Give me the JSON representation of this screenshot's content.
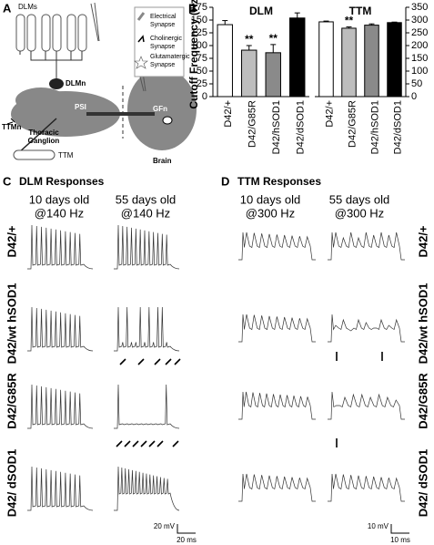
{
  "panel_a": {
    "label": "A",
    "dlms": "DLMs",
    "dlmn": "DLMn",
    "psi": "PSI",
    "ttmn": "TTMn",
    "ganglion": [
      "Thoracic",
      "Ganglion"
    ],
    "ttm": "TTM",
    "gfn": "GFn",
    "brain": "Brain",
    "legend": [
      [
        "Electrical",
        "Synapse"
      ],
      [
        "Cholinergic",
        "Synapse"
      ],
      [
        "Glutamatergic",
        "Synapse"
      ]
    ]
  },
  "panel_b": {
    "label": "B"
  },
  "chart_data": [
    {
      "type": "bar",
      "title": "DLM",
      "ylabel": "Cutoff Frequency (Hz)",
      "categories": [
        "D42/+",
        "D42/G85R",
        "D42/hSOD1",
        "D42/dSOD1"
      ],
      "values": [
        141,
        91,
        86,
        154
      ],
      "errors": [
        8,
        9,
        16,
        10
      ],
      "colors": [
        "#ffffff",
        "#bdbdbd",
        "#8a8a8a",
        "#000000"
      ],
      "annotations": [
        null,
        "**",
        "**",
        null
      ],
      "ylim": [
        0,
        175
      ],
      "yticks": [
        0,
        25,
        50,
        75,
        100,
        125,
        150,
        175
      ],
      "y_axis": "left"
    },
    {
      "type": "bar",
      "title": "TTM",
      "categories": [
        "D42/+",
        "D42/G85R",
        "D42/hSOD1",
        "D42/dSOD1"
      ],
      "values": [
        293,
        268,
        280,
        290
      ],
      "errors": [
        3,
        5,
        5,
        2
      ],
      "colors": [
        "#ffffff",
        "#bdbdbd",
        "#8a8a8a",
        "#000000"
      ],
      "annotations": [
        null,
        "**",
        null,
        null
      ],
      "ylim": [
        0,
        350
      ],
      "yticks": [
        0,
        50,
        100,
        150,
        200,
        250,
        300,
        350
      ],
      "y_axis": "right"
    }
  ],
  "panel_c": {
    "label": "C",
    "title": "DLM Responses",
    "columns": [
      [
        "10 days old",
        "@140 Hz"
      ],
      [
        "55 days old",
        "@140 Hz"
      ]
    ],
    "rows": [
      "D42/+",
      "D42/wt hSOD1",
      "D42/G85R",
      "D42/ dSOD1"
    ],
    "scale": [
      "20 mV",
      "20 ms"
    ]
  },
  "panel_d": {
    "label": "D",
    "title": "TTM Responses",
    "columns": [
      [
        "10 days old",
        "@300 Hz"
      ],
      [
        "55 days old",
        "@300 Hz"
      ]
    ],
    "rows": [
      "D42/+",
      "D42/wt hSOD1",
      "D42/G85R",
      "D42/ dSOD1"
    ],
    "scale": [
      "10 mV",
      "10 ms"
    ]
  }
}
